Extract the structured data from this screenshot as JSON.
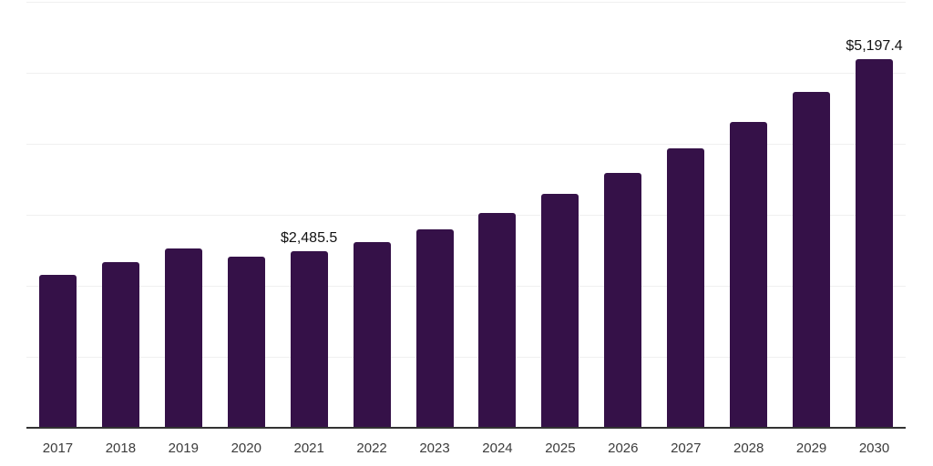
{
  "chart_data": {
    "type": "bar",
    "title": "",
    "xlabel": "",
    "ylabel": "",
    "categories": [
      "2017",
      "2018",
      "2019",
      "2020",
      "2021",
      "2022",
      "2023",
      "2024",
      "2025",
      "2026",
      "2027",
      "2028",
      "2029",
      "2030"
    ],
    "values": [
      2160,
      2335,
      2525,
      2410,
      2485.5,
      2620,
      2800,
      3030,
      3300,
      3595,
      3940,
      4310,
      4730,
      5197.4
    ],
    "data_labels": [
      {
        "index": 4,
        "text": "$2,485.5"
      },
      {
        "index": 13,
        "text": "$5,197.4"
      }
    ],
    "ylim": [
      0,
      6000
    ],
    "ytick_step": 1000,
    "y_tick_labels_visible": false,
    "grid": "horizontal",
    "legend_position": "none",
    "bar_color": "#351148"
  },
  "colors": {
    "bar": "#351148",
    "gridline": "#f0f0f0",
    "axis": "#333333",
    "tick_label": "#3c3c3c",
    "data_label": "#111111",
    "background": "#ffffff"
  }
}
